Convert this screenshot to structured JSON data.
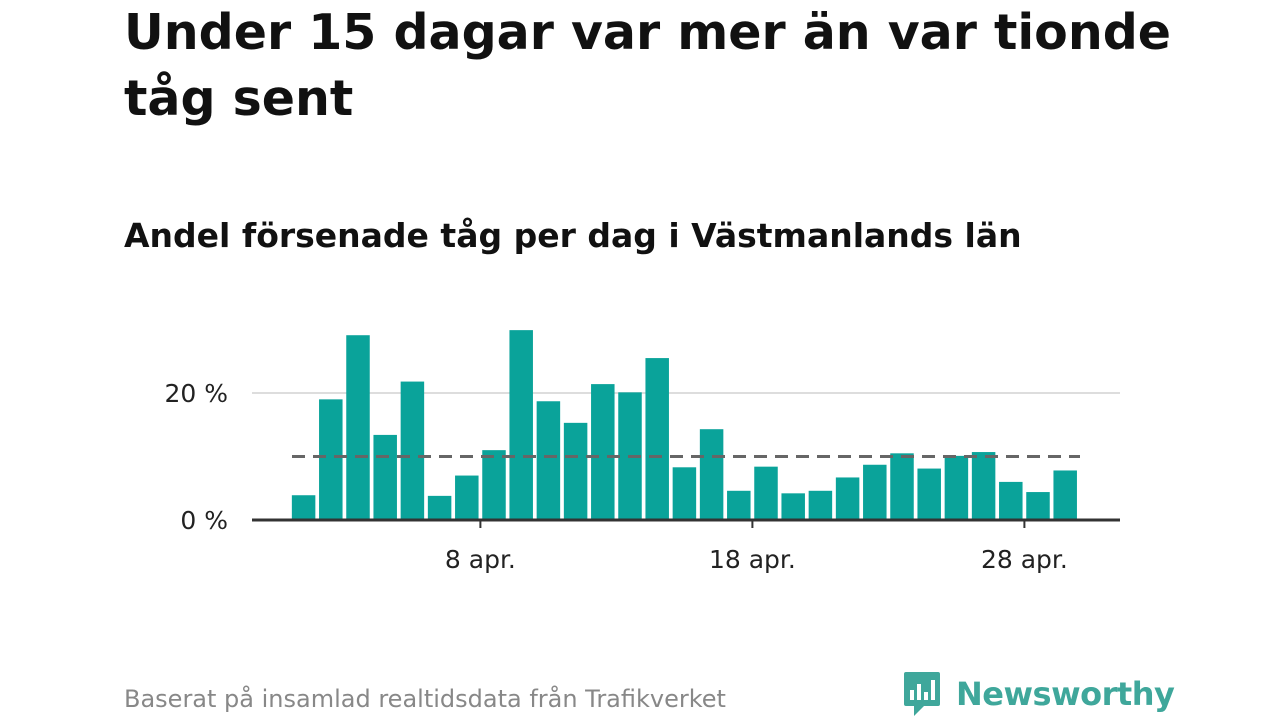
{
  "title": "Under 15 dagar var mer än var tionde tåg sent",
  "subtitle": "Andel försenade tåg per dag i Västmanlands län",
  "source": "Baserat på insamlad realtidsdata från Trafikverket",
  "brand": {
    "name": "Newsworthy",
    "icon": "newsworthy-logo-icon",
    "color": "#3fa79b"
  },
  "chart_data": {
    "type": "bar",
    "title": "Under 15 dagar var mer än var tionde tåg sent",
    "subtitle": "Andel försenade tåg per dag i Västmanlands län",
    "x": [
      "1 apr.",
      "2 apr.",
      "3 apr.",
      "4 apr.",
      "5 apr.",
      "6 apr.",
      "7 apr.",
      "8 apr.",
      "9 apr.",
      "10 apr.",
      "11 apr.",
      "12 apr.",
      "13 apr.",
      "14 apr.",
      "15 apr.",
      "16 apr.",
      "17 apr.",
      "18 apr.",
      "19 apr.",
      "20 apr.",
      "21 apr.",
      "22 apr.",
      "23 apr.",
      "24 apr.",
      "25 apr.",
      "26 apr.",
      "27 apr.",
      "28 apr.",
      "29 apr."
    ],
    "values": [
      3.9,
      19.0,
      29.1,
      13.4,
      21.8,
      3.8,
      7.0,
      11.0,
      29.9,
      18.7,
      15.3,
      21.4,
      20.1,
      25.5,
      8.3,
      14.3,
      4.6,
      8.4,
      4.2,
      4.6,
      6.7,
      8.7,
      10.5,
      8.1,
      10.1,
      10.7,
      6.0,
      4.4,
      7.8
    ],
    "x_ticks": [
      "8 apr.",
      "18 apr.",
      "28 apr."
    ],
    "y_ticks": [
      {
        "value": 0,
        "label": "0 %"
      },
      {
        "value": 20,
        "label": "20 %"
      }
    ],
    "ylim": [
      0,
      30
    ],
    "reference_line": {
      "value": 10,
      "style": "dashed"
    },
    "xlabel": "",
    "ylabel": "",
    "grid": true,
    "bar_color": "#0aa39a"
  }
}
